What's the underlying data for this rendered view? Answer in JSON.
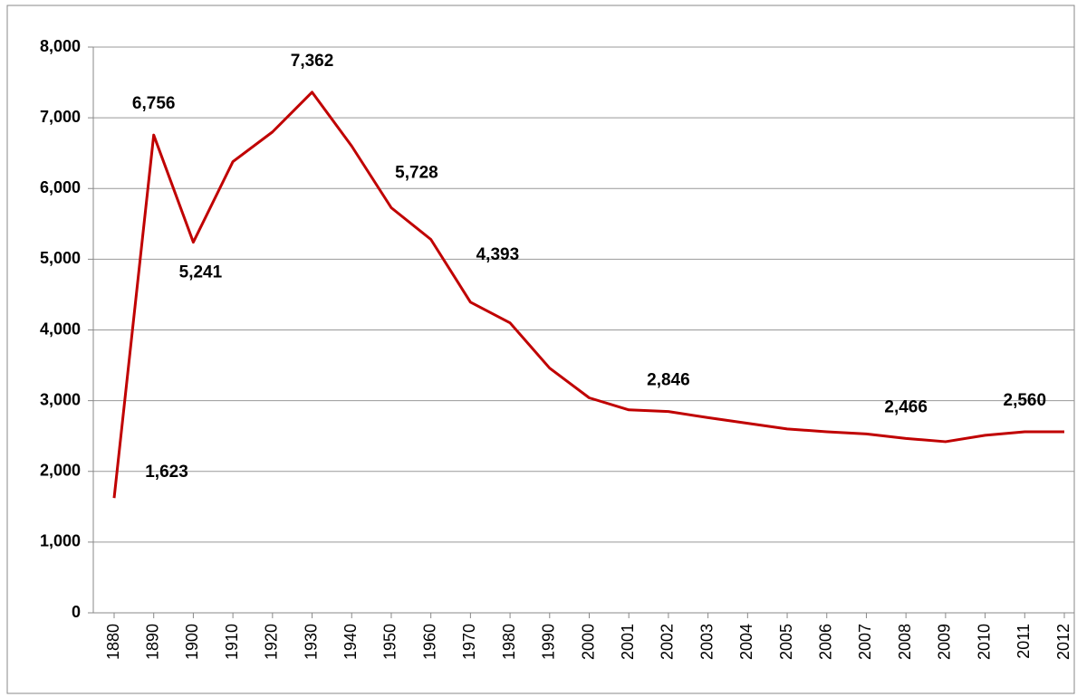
{
  "chart_data": {
    "type": "line",
    "categories": [
      "1880",
      "1890",
      "1900",
      "1910",
      "1920",
      "1930",
      "1940",
      "1950",
      "1960",
      "1970",
      "1980",
      "1990",
      "2000",
      "2001",
      "2002",
      "2003",
      "2004",
      "2005",
      "2006",
      "2007",
      "2008",
      "2009",
      "2010",
      "2011",
      "2012"
    ],
    "values": [
      1623,
      6756,
      5241,
      6380,
      6800,
      7362,
      6600,
      5728,
      5280,
      4393,
      4100,
      3460,
      3040,
      2870,
      2846,
      2760,
      2680,
      2600,
      2560,
      2530,
      2466,
      2420,
      2510,
      2560,
      2560
    ],
    "value_labels": [
      "1,623",
      "6,756",
      "5,241",
      null,
      null,
      "7,362",
      null,
      "5,728",
      null,
      "4,393",
      null,
      null,
      null,
      null,
      "2,846",
      null,
      null,
      null,
      null,
      null,
      "2,466",
      null,
      null,
      "2,560",
      null
    ],
    "color": "#c00000",
    "ylim": [
      0,
      8000
    ],
    "yticks": [
      0,
      {
        "value": 1000,
        "label": "1,000"
      },
      {
        "value": 2000,
        "label": "2,000"
      },
      {
        "value": 3000,
        "label": "3,000"
      },
      {
        "value": 4000,
        "label": "4,000"
      },
      {
        "value": 5000,
        "label": "5,000"
      },
      {
        "value": 6000,
        "label": "6,000"
      },
      {
        "value": 7000,
        "label": "7,000"
      },
      {
        "value": 8000,
        "label": "8,000"
      }
    ],
    "grid": true
  }
}
